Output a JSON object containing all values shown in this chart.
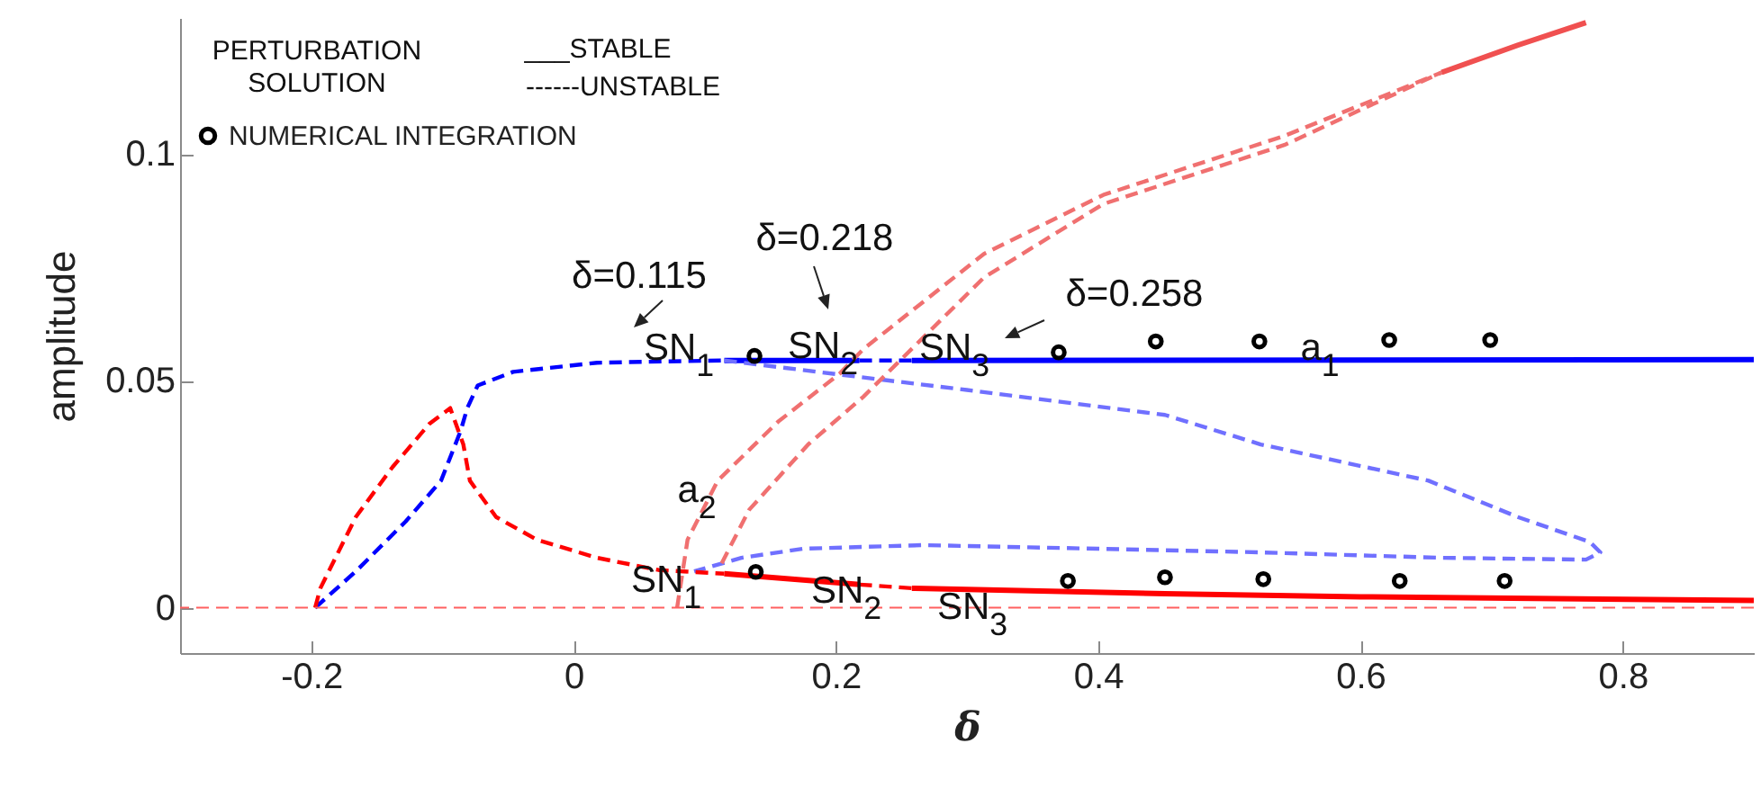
{
  "chart_data": {
    "type": "line",
    "xlabel": "δ",
    "ylabel": "amplitude",
    "xlim": [
      -0.3,
      0.9
    ],
    "ylim": [
      -0.01,
      0.13
    ],
    "xticks": [
      -0.2,
      0,
      0.2,
      0.4,
      0.6,
      0.8
    ],
    "yticks": [
      0,
      0.05,
      0.1
    ],
    "legend": "top left",
    "series": [
      {
        "type": "line",
        "color": "#0000ff",
        "line_style": "dashed",
        "x": [
          -0.197,
          -0.166,
          -0.128,
          -0.101,
          -0.086,
          -0.081,
          -0.073,
          -0.046,
          0.018,
          0.07,
          0.115
        ],
        "values": [
          0,
          0.008,
          0.019,
          0.028,
          0.039,
          0.044,
          0.049,
          0.052,
          0.054,
          0.0543,
          0.0545
        ]
      },
      {
        "type": "line",
        "color": "#0000ff",
        "line_style": "solid",
        "x": [
          0.115,
          0.218
        ],
        "values": [
          0.0545,
          0.0545
        ]
      },
      {
        "type": "line",
        "color": "#0000ff",
        "line_style": "dashed",
        "x": [
          0.218,
          0.258
        ],
        "values": [
          0.0545,
          0.0545
        ]
      },
      {
        "type": "line",
        "color": "#0000ff",
        "line_style": "solid",
        "x": [
          0.258,
          0.9
        ],
        "values": [
          0.0545,
          0.0547
        ]
      },
      {
        "type": "line",
        "color": "#7070ff",
        "line_style": "dashed",
        "x": [
          0.115,
          0.2,
          0.3,
          0.451,
          0.524,
          0.652,
          0.72,
          0.775,
          0.783,
          0.772,
          0.662,
          0.524,
          0.4,
          0.266,
          0.175,
          0.128,
          0.092
        ],
        "values": [
          0.0545,
          0.0515,
          0.048,
          0.0425,
          0.036,
          0.028,
          0.02,
          0.0145,
          0.0122,
          0.0106,
          0.011,
          0.0122,
          0.013,
          0.0138,
          0.013,
          0.011,
          0.008
        ]
      },
      {
        "type": "line",
        "color": "#ff0000",
        "line_style": "dashed",
        "x": [
          -0.197,
          -0.193,
          -0.166,
          -0.138,
          -0.11,
          -0.094,
          -0.084,
          -0.079,
          -0.059,
          -0.028,
          0.018,
          0.065,
          0.115
        ],
        "values": [
          0,
          0.0043,
          0.02,
          0.031,
          0.0405,
          0.044,
          0.036,
          0.028,
          0.02,
          0.015,
          0.011,
          0.0083,
          0.0075
        ]
      },
      {
        "type": "line",
        "color": "#ff0000",
        "line_style": "solid",
        "x": [
          0.115,
          0.218
        ],
        "values": [
          0.0075,
          0.0051
        ]
      },
      {
        "type": "line",
        "color": "#ff0000",
        "line_style": "dashed",
        "x": [
          0.218,
          0.258
        ],
        "values": [
          0.0051,
          0.0043
        ]
      },
      {
        "type": "line",
        "color": "#ff0000",
        "line_style": "solid",
        "x": [
          0.258,
          0.451,
          0.6,
          0.9
        ],
        "values": [
          0.0043,
          0.0031,
          0.0024,
          0.0016
        ]
      },
      {
        "type": "line",
        "color": "#f07070",
        "line_style": "dashed",
        "x": [
          0.079,
          0.087,
          0.11,
          0.156,
          0.203,
          0.221,
          0.313,
          0.404,
          0.542,
          0.662
        ],
        "values": [
          0,
          0.015,
          0.028,
          0.041,
          0.0516,
          0.057,
          0.078,
          0.091,
          0.104,
          0.118
        ]
      },
      {
        "type": "line",
        "color": "#f07070",
        "line_style": "dashed",
        "x": [
          0.113,
          0.134,
          0.179,
          0.221,
          0.313,
          0.404,
          0.542,
          0.662
        ],
        "values": [
          0.0098,
          0.0216,
          0.036,
          0.0465,
          0.0728,
          0.089,
          0.102,
          0.118
        ]
      },
      {
        "type": "line",
        "color": "#f05050",
        "line_style": "solid",
        "x": [
          0.662,
          0.72,
          0.772
        ],
        "values": [
          0.118,
          0.124,
          0.129
        ]
      },
      {
        "type": "scatter",
        "name": "NUMERICAL INTEGRATION",
        "color": "#000000",
        "marker": "circle",
        "x": [
          0.138,
          0.37,
          0.444,
          0.523,
          0.622,
          0.699,
          0.139,
          0.377,
          0.451,
          0.526,
          0.63,
          0.71
        ],
        "values": [
          0.0555,
          0.0563,
          0.0587,
          0.0587,
          0.059,
          0.059,
          0.0079,
          0.0059,
          0.0067,
          0.0063,
          0.0059,
          0.0059
        ]
      }
    ],
    "ref_lines": [
      {
        "axis": "y",
        "value": 0,
        "color": "#ff6060",
        "line_style": "dashed"
      }
    ],
    "annotations": [
      "PERTURBATION SOLUTION",
      "___STABLE",
      "------UNSTABLE",
      "δ=0.115",
      "δ=0.218",
      "δ=0.258",
      "SN$_{1}$",
      "SN$_{2}$",
      "SN$_{3}$",
      "a$_{1}$",
      "a$_{2}$",
      "SN$_{1}$",
      "SN$_{2}$",
      "SN$_{3}$"
    ]
  }
}
